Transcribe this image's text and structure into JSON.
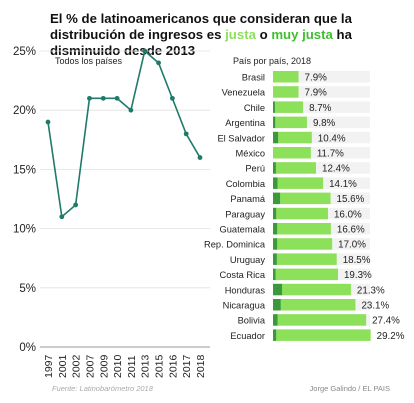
{
  "title": {
    "part1": "El % de latinoamericanos que consideran que la distribución de ingresos es ",
    "word_a": "justa",
    "mid": " o ",
    "word_b": "muy justa",
    "part2": " ha disminuido desde 2013"
  },
  "footer": {
    "source": "Fuente: Latinobarómetro 2018",
    "credit": "Jorge Galindo / EL PAIS"
  },
  "colors": {
    "line": "#1f7a6a",
    "grid": "#e0e0e0",
    "bar_light": "#8ce05a",
    "bar_dark": "#3a9a3a",
    "bar_bg": "#f2f2f2",
    "text": "#222222"
  },
  "chart_data": [
    {
      "type": "line",
      "subtitle": "Todos los países",
      "x": [
        "1997",
        "2001",
        "2002",
        "2007",
        "2009",
        "2010",
        "2011",
        "2013",
        "2015",
        "2016",
        "2017",
        "2018"
      ],
      "series": [
        {
          "values": [
            19,
            11,
            12,
            21,
            21,
            21,
            20,
            25,
            24,
            21,
            18,
            16
          ]
        }
      ],
      "y_ticks": [
        "0%",
        "5%",
        "10%",
        "15%",
        "20%",
        "25%"
      ],
      "ylim": [
        0,
        25
      ],
      "grid": true
    },
    {
      "type": "bar",
      "subtitle": "País por país, 2018",
      "orientation": "horizontal",
      "categories": [
        "Brasil",
        "Venezuela",
        "Chile",
        "Argentina",
        "El Salvador",
        "México",
        "Perú",
        "Colombia",
        "Panamá",
        "Paraguay",
        "Guatemala",
        "Rep. Dominica",
        "Uruguay",
        "Costa Rica",
        "Honduras",
        "Nicaragua",
        "Bolivia",
        "Ecuador"
      ],
      "series": [
        {
          "name": "justa",
          "values": [
            7.9,
            7.9,
            8.7,
            9.8,
            10.4,
            11.7,
            12.4,
            14.1,
            15.6,
            16.0,
            16.6,
            17.0,
            18.5,
            19.3,
            21.3,
            23.1,
            27.4,
            29.2
          ]
        },
        {
          "name": "muy justa",
          "values": [
            0.0,
            0.0,
            0.6,
            0.7,
            1.6,
            0.0,
            0.9,
            1.4,
            2.2,
            1.0,
            1.3,
            1.3,
            1.2,
            0.8,
            2.8,
            2.4,
            1.4,
            1.0
          ]
        }
      ],
      "value_labels": [
        "7.9%",
        "7.9%",
        "8.7%",
        "9.8%",
        "10.4%",
        "11.7%",
        "12.4%",
        "14.1%",
        "15.6%",
        "16.0%",
        "16.6%",
        "17.0%",
        "18.5%",
        "19.3%",
        "21.3%",
        "23.1%",
        "27.4%",
        "29.2%"
      ],
      "xlim": [
        0,
        30
      ]
    }
  ]
}
